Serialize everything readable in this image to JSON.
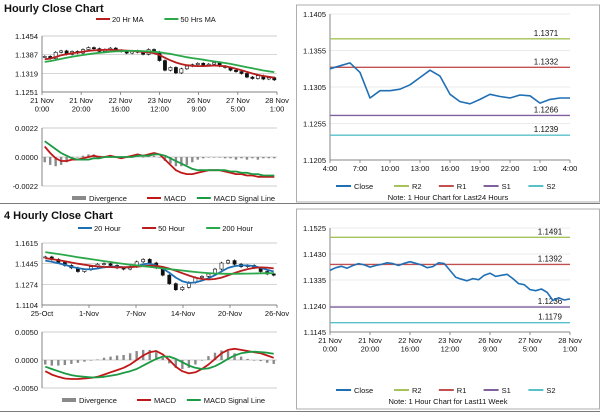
{
  "sections": [
    {
      "title": "Hourly Close Chart"
    },
    {
      "title": "4 Hourly Close Chart"
    }
  ],
  "colors": {
    "close": "#1f6fb5",
    "ma_short": "#b81e1e",
    "ma_long": "#2aa84a",
    "r2": "#a6c25a",
    "r1": "#c25050",
    "s1": "#8060a0",
    "s2": "#58c0c8",
    "macd": "#c01818",
    "signal": "#1c9a44",
    "divergence": "#8a8a8a",
    "candle": "#101010",
    "grid": "#bdbdbd"
  },
  "chart_data": [
    {
      "id": "hourly_ma",
      "type": "line",
      "title": "",
      "legend": [
        "20 Hr MA",
        "50 Hrs MA"
      ],
      "legend_placement": "top",
      "ytick_labels": [
        "1.1454",
        "1.1387",
        "1.1319",
        "1.1251"
      ],
      "ylim": [
        1.1251,
        1.1454
      ],
      "xtick_labels": [
        "21 Nov\n0:00",
        "21 Nov\n20:00",
        "22 Nov\n16:00",
        "23 Nov\n12:00",
        "26 Nov\n9:00",
        "27 Nov\n5:00",
        "28 Nov\n1:00"
      ],
      "price": [
        1.138,
        1.1372,
        1.1395,
        1.14,
        1.1388,
        1.1398,
        1.1392,
        1.1405,
        1.1412,
        1.1408,
        1.1398,
        1.1405,
        1.141,
        1.1402,
        1.1398,
        1.1392,
        1.14,
        1.1395,
        1.1388,
        1.1405,
        1.1396,
        1.1365,
        1.133,
        1.134,
        1.132,
        1.1335,
        1.1345,
        1.135,
        1.1355,
        1.1348,
        1.1352,
        1.1358,
        1.1345,
        1.134,
        1.133,
        1.1325,
        1.1318,
        1.1305,
        1.13,
        1.131,
        1.1298,
        1.1303,
        1.1295
      ],
      "series": [
        {
          "name": "20 Hr MA",
          "values": [
            1.137,
            1.1372,
            1.1378,
            1.1384,
            1.1388,
            1.1392,
            1.1394,
            1.1397,
            1.14,
            1.1402,
            1.1403,
            1.1404,
            1.1404,
            1.1403,
            1.1402,
            1.1401,
            1.14,
            1.1398,
            1.1396,
            1.1395,
            1.1392,
            1.1385,
            1.1375,
            1.1366,
            1.1358,
            1.1352,
            1.1348,
            1.1346,
            1.1345,
            1.1345,
            1.1346,
            1.1347,
            1.1346,
            1.1344,
            1.134,
            1.1335,
            1.133,
            1.1324,
            1.1318,
            1.1313,
            1.1309,
            1.1306,
            1.1303
          ]
        },
        {
          "name": "50 Hrs MA",
          "values": [
            1.136,
            1.1363,
            1.1367,
            1.1371,
            1.1375,
            1.1379,
            1.1382,
            1.1385,
            1.1388,
            1.1391,
            1.1393,
            1.1395,
            1.1397,
            1.1398,
            1.1399,
            1.14,
            1.14,
            1.14,
            1.1399,
            1.1398,
            1.1397,
            1.1395,
            1.1392,
            1.1389,
            1.1385,
            1.1381,
            1.1377,
            1.1374,
            1.1371,
            1.1368,
            1.1365,
            1.1362,
            1.1359,
            1.1356,
            1.1353,
            1.1349,
            1.1345,
            1.1341,
            1.1337,
            1.1333,
            1.1329,
            1.1326,
            1.1323
          ]
        }
      ]
    },
    {
      "id": "hourly_macd",
      "type": "line",
      "title": "",
      "legend": [
        "Divergence",
        "MACD",
        "MACD Signal Line"
      ],
      "legend_placement": "bottom",
      "ytick_labels": [
        "0.0022",
        "0.0000",
        "-0.0022"
      ],
      "ylim": [
        -0.0022,
        0.0022
      ],
      "series": [
        {
          "name": "MACD",
          "values": [
            0.0008,
            0.0003,
            -0.0001,
            -0.0003,
            -0.0003,
            -0.0002,
            -0.0002,
            -0.0001,
            0.0,
            0.0001,
            0.0,
            0.0,
            0.0001,
            0.0,
            -0.0001,
            0.0,
            0.0001,
            0.0002,
            0.0001,
            0.0002,
            0.0003,
            0.0002,
            -0.0002,
            -0.0006,
            -0.001,
            -0.0012,
            -0.0013,
            -0.0013,
            -0.0012,
            -0.0011,
            -0.001,
            -0.001,
            -0.001,
            -0.0011,
            -0.0012,
            -0.0013,
            -0.0013,
            -0.0014,
            -0.0014,
            -0.0015,
            -0.0015,
            -0.0015,
            -0.0015
          ]
        },
        {
          "name": "MACD Signal Line",
          "values": [
            0.0012,
            0.0009,
            0.0006,
            0.0003,
            0.0001,
            -0.0001,
            -0.0002,
            -0.0002,
            -0.0002,
            -0.0001,
            -0.0001,
            0.0,
            0.0,
            0.0,
            0.0,
            0.0,
            0.0,
            0.0001,
            0.0001,
            0.0001,
            0.0002,
            0.0002,
            0.0001,
            -0.0001,
            -0.0003,
            -0.0005,
            -0.0007,
            -0.0009,
            -0.001,
            -0.001,
            -0.001,
            -0.001,
            -0.001,
            -0.001,
            -0.0011,
            -0.0011,
            -0.0012,
            -0.0012,
            -0.0013,
            -0.0013,
            -0.0014,
            -0.0014,
            -0.0014
          ]
        },
        {
          "name": "Divergence",
          "values": [
            -0.0004,
            -0.0006,
            -0.0007,
            -0.0006,
            -0.0004,
            -0.0001,
            0.0,
            0.0001,
            0.0002,
            0.0002,
            0.0001,
            0.0,
            0.0001,
            0.0,
            -0.0001,
            0.0,
            0.0001,
            0.0001,
            0.0,
            0.0001,
            0.0001,
            0.0,
            -0.0003,
            -0.0005,
            -0.0007,
            -0.0007,
            -0.0006,
            -0.0004,
            -0.0002,
            -0.0001,
            0.0,
            0.0,
            0.0,
            -0.0001,
            -0.0001,
            -0.0002,
            -0.0001,
            -0.0002,
            -0.0001,
            -0.0002,
            -0.0001,
            -0.0001,
            -0.0001
          ]
        }
      ]
    },
    {
      "id": "hourly_pivot",
      "type": "line",
      "title": "",
      "ylim": [
        1.1205,
        1.1405
      ],
      "ytick_labels": [
        "1.1405",
        "1.1355",
        "1.1305",
        "1.1255",
        "1.1205"
      ],
      "xtick_labels": [
        "4:00",
        "7:00",
        "10:00",
        "13:00",
        "16:00",
        "19:00",
        "22:00",
        "1:00",
        "4:00"
      ],
      "levels": [
        {
          "name": "R2",
          "value": 1.1371,
          "label": "1.1371"
        },
        {
          "name": "R1",
          "value": 1.1332,
          "label": "1.1332"
        },
        {
          "name": "S1",
          "value": 1.1266,
          "label": "1.1266"
        },
        {
          "name": "S2",
          "value": 1.1239,
          "label": "1.1239"
        }
      ],
      "close": [
        1.133,
        1.1334,
        1.1338,
        1.1325,
        1.129,
        1.13,
        1.13,
        1.1302,
        1.1308,
        1.1318,
        1.1328,
        1.132,
        1.1295,
        1.1285,
        1.1282,
        1.1288,
        1.1295,
        1.1292,
        1.129,
        1.1294,
        1.1293,
        1.1283,
        1.1288,
        1.129,
        1.129
      ],
      "legend": [
        "Close",
        "R2",
        "R1",
        "S1",
        "S2"
      ],
      "note": "Note: 1 Hour Chart for Last24 Hours"
    },
    {
      "id": "4h_ma",
      "type": "line",
      "title": "",
      "legend": [
        "20 Hour",
        "50 Hour",
        "200 Hour"
      ],
      "legend_placement": "top",
      "ytick_labels": [
        "1.1615",
        "1.1445",
        "1.1274",
        "1.1104"
      ],
      "ylim": [
        1.1104,
        1.1615
      ],
      "xtick_labels": [
        "25-Oct",
        "1-Nov",
        "7-Nov",
        "14-Nov",
        "20-Nov",
        "26-Nov"
      ],
      "price": [
        1.15,
        1.148,
        1.1455,
        1.143,
        1.141,
        1.138,
        1.1395,
        1.142,
        1.144,
        1.1445,
        1.143,
        1.141,
        1.14,
        1.142,
        1.146,
        1.148,
        1.145,
        1.141,
        1.135,
        1.128,
        1.123,
        1.125,
        1.129,
        1.133,
        1.134,
        1.136,
        1.14,
        1.145,
        1.147,
        1.144,
        1.142,
        1.143,
        1.141,
        1.138,
        1.136,
        1.135
      ],
      "series": [
        {
          "name": "20 Hour",
          "values": [
            1.147,
            1.146,
            1.1448,
            1.1435,
            1.142,
            1.1408,
            1.14,
            1.1398,
            1.1405,
            1.1415,
            1.142,
            1.142,
            1.1415,
            1.1415,
            1.1425,
            1.144,
            1.1445,
            1.143,
            1.1405,
            1.137,
            1.133,
            1.13,
            1.1285,
            1.129,
            1.1305,
            1.1325,
            1.135,
            1.138,
            1.141,
            1.1425,
            1.143,
            1.143,
            1.1425,
            1.141,
            1.1395,
            1.138
          ]
        },
        {
          "name": "50 Hour",
          "values": [
            1.149,
            1.1482,
            1.1474,
            1.1464,
            1.1454,
            1.1444,
            1.1436,
            1.1428,
            1.1422,
            1.1418,
            1.1416,
            1.1415,
            1.1415,
            1.1416,
            1.142,
            1.1425,
            1.1428,
            1.1426,
            1.1418,
            1.1404,
            1.1386,
            1.1366,
            1.1347,
            1.133,
            1.1318,
            1.1314,
            1.1318,
            1.133,
            1.1348,
            1.1368,
            1.1385,
            1.14,
            1.141,
            1.1414,
            1.1412,
            1.1406
          ]
        },
        {
          "name": "200 Hour",
          "values": [
            1.154,
            1.1532,
            1.1524,
            1.1516,
            1.1507,
            1.1498,
            1.149,
            1.1482,
            1.1474,
            1.1466,
            1.1458,
            1.145,
            1.1443,
            1.1436,
            1.143,
            1.1424,
            1.1418,
            1.1412,
            1.1406,
            1.14,
            1.1394,
            1.1388,
            1.1382,
            1.1376,
            1.1371,
            1.1367,
            1.1364,
            1.1362,
            1.1361,
            1.1361,
            1.1362,
            1.1363,
            1.1364,
            1.1365,
            1.1366,
            1.1366
          ]
        }
      ]
    },
    {
      "id": "4h_macd",
      "type": "line",
      "title": "",
      "legend": [
        "Divergence",
        "MACD",
        "MACD Signal Line"
      ],
      "legend_placement": "bottom",
      "ytick_labels": [
        "0.0050",
        "0.0000",
        "-0.0050"
      ],
      "ylim": [
        -0.005,
        0.005
      ],
      "series": [
        {
          "name": "MACD",
          "values": [
            -0.002,
            -0.0026,
            -0.003,
            -0.0033,
            -0.0034,
            -0.0034,
            -0.0033,
            -0.0032,
            -0.003,
            -0.0026,
            -0.0022,
            -0.0018,
            -0.0014,
            -0.0008,
            0.0,
            0.0008,
            0.0014,
            0.0016,
            0.001,
            0.0,
            -0.0012,
            -0.002,
            -0.0024,
            -0.0022,
            -0.0016,
            -0.0008,
            0.0002,
            0.0012,
            0.0018,
            0.002,
            0.0018,
            0.0016,
            0.0014,
            0.0012,
            0.0008,
            0.0004
          ]
        },
        {
          "name": "MACD Signal Line",
          "values": [
            -0.0012,
            -0.0016,
            -0.002,
            -0.0024,
            -0.0027,
            -0.0029,
            -0.003,
            -0.0031,
            -0.0031,
            -0.003,
            -0.0028,
            -0.0026,
            -0.0023,
            -0.002,
            -0.0016,
            -0.001,
            -0.0004,
            0.0002,
            0.0006,
            0.0006,
            0.0002,
            -0.0004,
            -0.001,
            -0.0014,
            -0.0016,
            -0.0015,
            -0.0011,
            -0.0005,
            0.0002,
            0.0008,
            0.0012,
            0.0014,
            0.0015,
            0.0014,
            0.0013,
            0.0011
          ]
        },
        {
          "name": "Divergence",
          "values": [
            -0.0008,
            -0.001,
            -0.001,
            -0.0009,
            -0.0007,
            -0.0005,
            -0.0003,
            -0.0001,
            0.0001,
            0.0004,
            0.0006,
            0.0008,
            0.0009,
            0.0012,
            0.0016,
            0.0018,
            0.0018,
            0.0014,
            0.0004,
            -0.0006,
            -0.0014,
            -0.0016,
            -0.0014,
            -0.0008,
            0.0,
            0.0007,
            0.0013,
            0.0017,
            0.0016,
            0.0012,
            0.0006,
            0.0002,
            -0.0001,
            -0.0002,
            -0.0005,
            -0.0007
          ]
        }
      ]
    },
    {
      "id": "4h_pivot",
      "type": "line",
      "title": "",
      "ylim": [
        1.1145,
        1.1525
      ],
      "ytick_labels": [
        "1.1525",
        "1.1430",
        "1.1335",
        "1.1240",
        "1.1145"
      ],
      "xtick_labels": [
        "21 Nov\n0:00",
        "21 Nov\n20:00",
        "22 Nov\n16:00",
        "23 Nov\n12:00",
        "26 Nov\n9:00",
        "27 Nov\n5:00",
        "28 Nov\n1:00"
      ],
      "levels": [
        {
          "name": "R2",
          "value": 1.1491,
          "label": "1.1491"
        },
        {
          "name": "R1",
          "value": 1.1392,
          "label": "1.1392"
        },
        {
          "name": "S1",
          "value": 1.1236,
          "label": "1.1236"
        },
        {
          "name": "S2",
          "value": 1.1179,
          "label": "1.1179"
        }
      ],
      "close": [
        1.137,
        1.138,
        1.1385,
        1.1378,
        1.1388,
        1.1395,
        1.139,
        1.1382,
        1.1388,
        1.1392,
        1.1398,
        1.1395,
        1.1388,
        1.1396,
        1.1402,
        1.1396,
        1.139,
        1.138,
        1.1384,
        1.1398,
        1.1395,
        1.137,
        1.1345,
        1.1338,
        1.1332,
        1.134,
        1.1336,
        1.1352,
        1.136,
        1.1348,
        1.1352,
        1.1356,
        1.134,
        1.1322,
        1.1318,
        1.13,
        1.1296,
        1.1302,
        1.129,
        1.126,
        1.127,
        1.1262,
        1.1266
      ],
      "legend": [
        "Close",
        "R2",
        "R1",
        "S1",
        "S2"
      ],
      "note": "Note: 1 Hour Chart for Last11 Week"
    }
  ]
}
